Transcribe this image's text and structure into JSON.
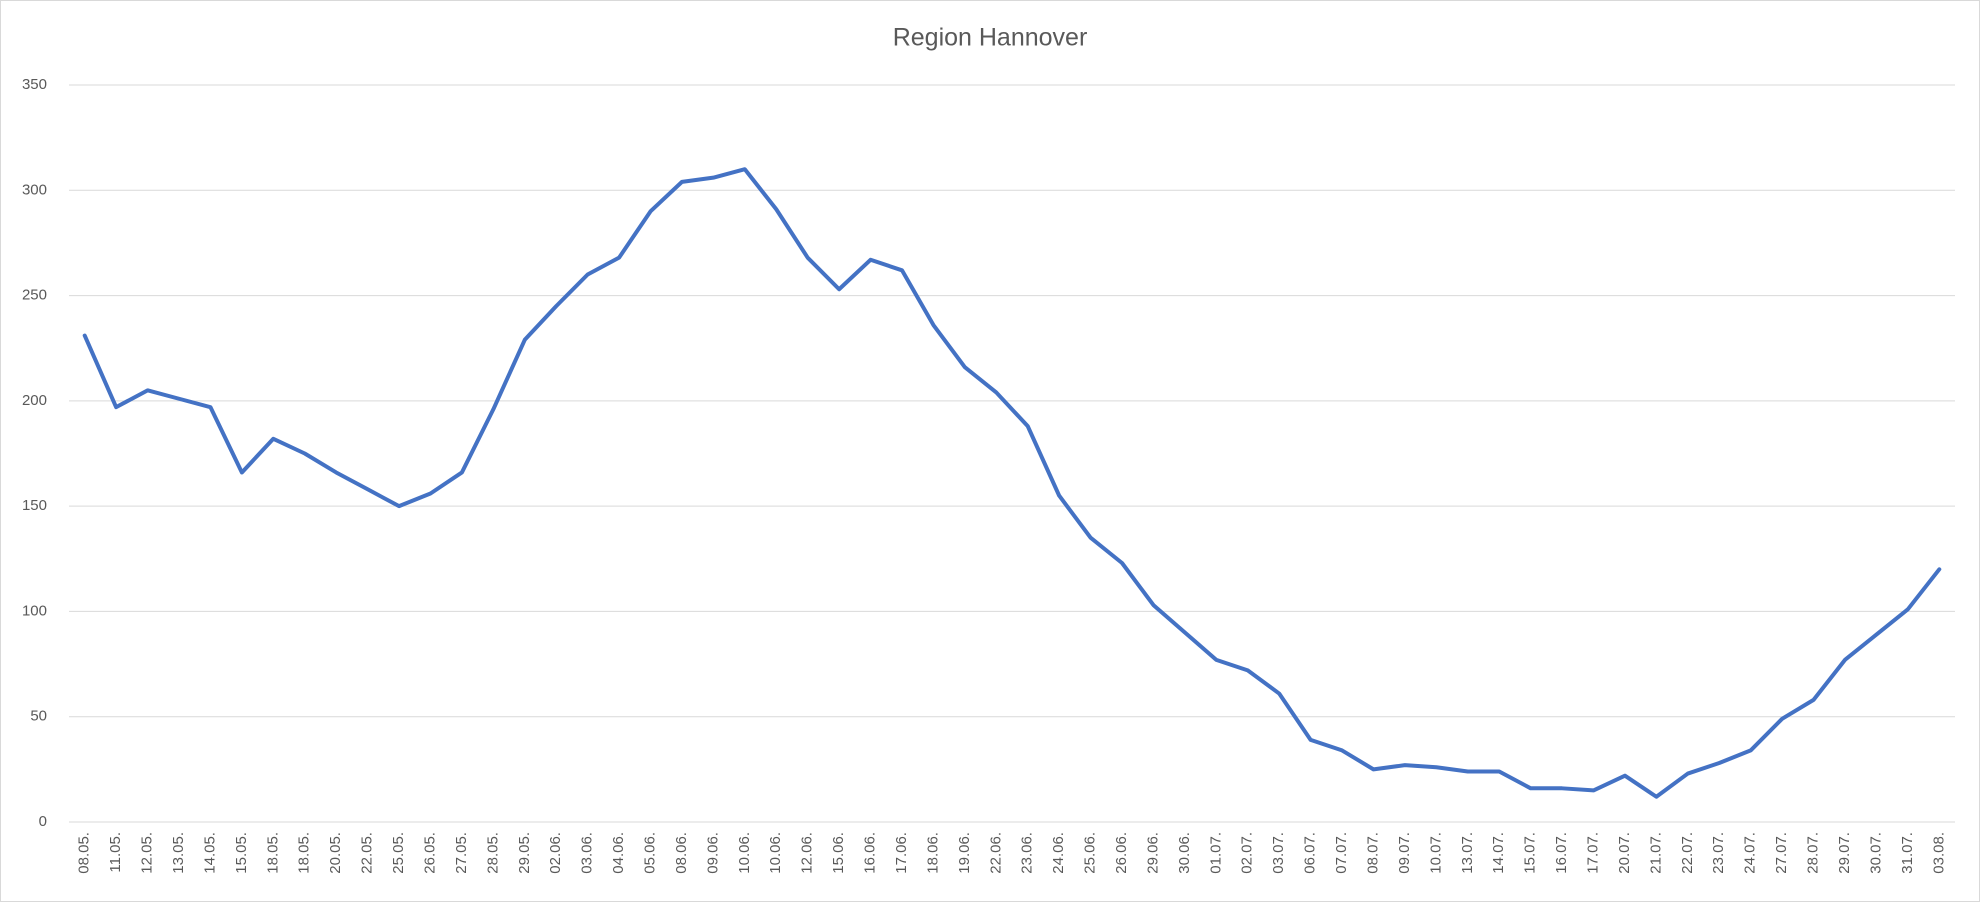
{
  "chart_data": {
    "type": "line",
    "title": "Region Hannover",
    "categories": [
      "08.05.",
      "11.05.",
      "12.05.",
      "13.05.",
      "14.05.",
      "15.05.",
      "18.05.",
      "18.05.",
      "20.05.",
      "22.05.",
      "25.05.",
      "26.05.",
      "27.05.",
      "28.05.",
      "29.05.",
      "02.06.",
      "03.06.",
      "04.06.",
      "05.06.",
      "08.06.",
      "09.06.",
      "10.06.",
      "10.06.",
      "12.06.",
      "15.06.",
      "16.06.",
      "17.06.",
      "18.06.",
      "19.06.",
      "22.06.",
      "23.06.",
      "24.06.",
      "25.06.",
      "26.06.",
      "29.06.",
      "30.06.",
      "01.07.",
      "02.07.",
      "03.07.",
      "06.07.",
      "07.07.",
      "08.07.",
      "09.07.",
      "10.07.",
      "13.07.",
      "14.07.",
      "15.07.",
      "16.07.",
      "17.07.",
      "20.07.",
      "21.07.",
      "22.07.",
      "23.07.",
      "24.07.",
      "27.07.",
      "28.07.",
      "29.07.",
      "30.07.",
      "31.07.",
      "03.08."
    ],
    "series": [
      {
        "name": "Region Hannover",
        "color": "#4472c4",
        "values": [
          231,
          197,
          205,
          201,
          197,
          166,
          182,
          175,
          166,
          158,
          150,
          156,
          166,
          196,
          229,
          245,
          260,
          268,
          290,
          304,
          306,
          310,
          291,
          268,
          253,
          267,
          262,
          236,
          216,
          204,
          188,
          155,
          135,
          123,
          103,
          90,
          77,
          72,
          61,
          39,
          34,
          25,
          27,
          26,
          24,
          24,
          16,
          16,
          15,
          22,
          12,
          23,
          28,
          34,
          49,
          58,
          77,
          89,
          101,
          120
        ]
      }
    ],
    "ylim": [
      0,
      350
    ],
    "yticks": [
      0,
      50,
      100,
      150,
      200,
      250,
      300,
      350
    ],
    "grid": true
  }
}
